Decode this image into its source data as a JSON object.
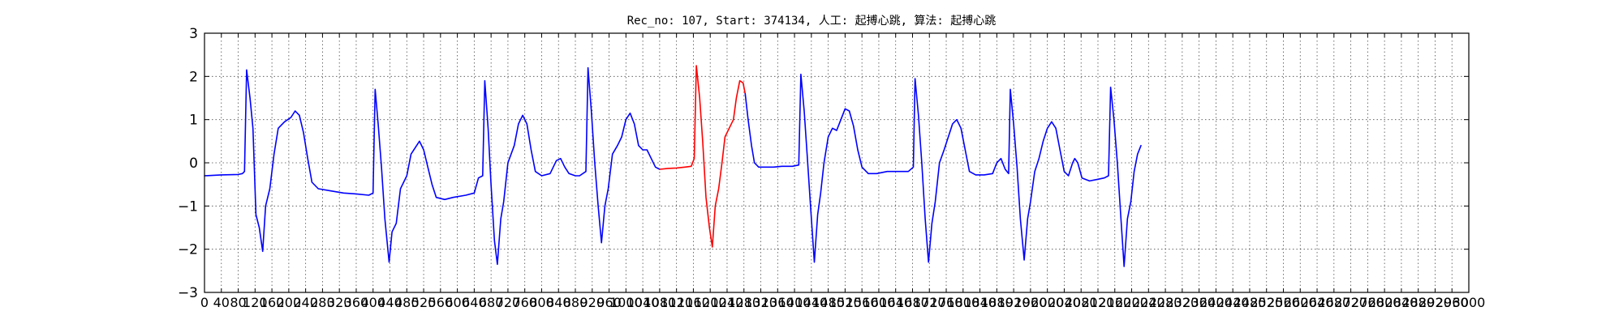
{
  "chart_data": {
    "type": "line",
    "title": "Rec_no: 107, Start: 374134, 人工: 起搏心跳, 算法: 起搏心跳",
    "xlabel": "",
    "ylabel": "",
    "xlim": [
      0,
      3000
    ],
    "ylim": [
      -3,
      3
    ],
    "grid": true,
    "y_ticks": [
      3,
      2,
      1,
      0,
      -1,
      -2,
      -3
    ],
    "y_tick_labels": [
      "3",
      "2",
      "1",
      "0",
      "−1",
      "−2",
      "−3"
    ],
    "x_ticks": [
      0,
      40,
      80,
      120,
      160,
      200,
      240,
      280,
      320,
      360,
      400,
      440,
      480,
      520,
      560,
      600,
      640,
      680,
      720,
      760,
      800,
      840,
      880,
      920,
      960,
      1000,
      1040,
      1080,
      1120,
      1160,
      1200,
      1240,
      1280,
      1320,
      1360,
      1400,
      1440,
      1480,
      1520,
      1560,
      1600,
      1640,
      1680,
      1720,
      1760,
      1800,
      1840,
      1880,
      1920,
      1960,
      2000,
      2040,
      2080,
      2120,
      2160,
      2200,
      2240,
      2280,
      2320,
      2360,
      2400,
      2440,
      2480,
      2520,
      2560,
      2600,
      2640,
      2680,
      2720,
      2760,
      2800,
      2840,
      2880,
      2920,
      2960,
      3000
    ],
    "x_tick_labels": [
      "0",
      "40",
      "80",
      "120",
      "160",
      "200",
      "240",
      "280",
      "320",
      "360",
      "400",
      "440",
      "480",
      "520",
      "560",
      "600",
      "640",
      "680",
      "720",
      "760",
      "800",
      "840",
      "880",
      "920",
      "960",
      "1000",
      "1040",
      "1080",
      "1120",
      "1160",
      "1200",
      "1240",
      "1280",
      "1320",
      "1360",
      "1400",
      "1440",
      "1480",
      "1520",
      "1560",
      "1600",
      "1640",
      "1680",
      "1720",
      "1760",
      "1800",
      "1840",
      "1880",
      "1920",
      "1960",
      "2000",
      "2040",
      "2080",
      "2120",
      "2160",
      "2200",
      "2240",
      "2280",
      "2320",
      "2360",
      "2400",
      "2440",
      "2480",
      "2520",
      "2560",
      "2600",
      "2640",
      "2680",
      "2720",
      "2760",
      "2800",
      "2840",
      "2880",
      "2920",
      "2960",
      "3000"
    ],
    "series": [
      {
        "color": "#0000ff",
        "points": [
          [
            0,
            -0.3
          ],
          [
            40,
            -0.28
          ],
          [
            80,
            -0.27
          ],
          [
            90,
            -0.25
          ],
          [
            95,
            -0.2
          ],
          [
            100,
            2.15
          ],
          [
            108,
            1.5
          ],
          [
            115,
            0.8
          ],
          [
            122,
            -1.2
          ],
          [
            130,
            -1.5
          ],
          [
            138,
            -2.05
          ],
          [
            145,
            -1.0
          ],
          [
            155,
            -0.6
          ],
          [
            165,
            0.2
          ],
          [
            175,
            0.8
          ],
          [
            190,
            0.95
          ],
          [
            205,
            1.05
          ],
          [
            215,
            1.2
          ],
          [
            225,
            1.1
          ],
          [
            235,
            0.7
          ],
          [
            245,
            0.1
          ],
          [
            255,
            -0.45
          ],
          [
            270,
            -0.6
          ],
          [
            300,
            -0.65
          ],
          [
            330,
            -0.7
          ],
          [
            360,
            -0.72
          ],
          [
            390,
            -0.75
          ],
          [
            400,
            -0.7
          ],
          [
            405,
            1.7
          ],
          [
            412,
            0.9
          ],
          [
            420,
            -0.1
          ],
          [
            428,
            -1.3
          ],
          [
            438,
            -2.3
          ],
          [
            445,
            -1.6
          ],
          [
            455,
            -1.4
          ],
          [
            465,
            -0.6
          ],
          [
            480,
            -0.3
          ],
          [
            490,
            0.2
          ],
          [
            500,
            0.35
          ],
          [
            510,
            0.5
          ],
          [
            520,
            0.3
          ],
          [
            530,
            -0.1
          ],
          [
            540,
            -0.5
          ],
          [
            550,
            -0.8
          ],
          [
            570,
            -0.85
          ],
          [
            590,
            -0.8
          ],
          [
            620,
            -0.75
          ],
          [
            640,
            -0.7
          ],
          [
            650,
            -0.35
          ],
          [
            660,
            -0.3
          ],
          [
            665,
            1.9
          ],
          [
            673,
            0.8
          ],
          [
            680,
            -0.5
          ],
          [
            688,
            -1.8
          ],
          [
            695,
            -2.35
          ],
          [
            703,
            -1.3
          ],
          [
            710,
            -0.9
          ],
          [
            720,
            0.0
          ],
          [
            735,
            0.4
          ],
          [
            745,
            0.9
          ],
          [
            755,
            1.1
          ],
          [
            765,
            0.9
          ],
          [
            775,
            0.3
          ],
          [
            785,
            -0.2
          ],
          [
            800,
            -0.3
          ],
          [
            820,
            -0.25
          ],
          [
            835,
            0.05
          ],
          [
            845,
            0.1
          ],
          [
            855,
            -0.1
          ],
          [
            865,
            -0.25
          ],
          [
            880,
            -0.3
          ],
          [
            890,
            -0.3
          ],
          [
            905,
            -0.2
          ],
          [
            910,
            2.2
          ],
          [
            918,
            1.2
          ],
          [
            926,
            0.0
          ],
          [
            934,
            -1.0
          ],
          [
            942,
            -1.85
          ],
          [
            950,
            -1.0
          ],
          [
            958,
            -0.6
          ],
          [
            968,
            0.2
          ],
          [
            980,
            0.4
          ],
          [
            990,
            0.6
          ],
          [
            1000,
            1.0
          ],
          [
            1010,
            1.15
          ],
          [
            1020,
            0.9
          ],
          [
            1030,
            0.4
          ],
          [
            1040,
            0.3
          ],
          [
            1050,
            0.3
          ],
          [
            1060,
            0.1
          ],
          [
            1070,
            -0.1
          ],
          [
            1080,
            -0.15
          ]
        ]
      },
      {
        "color": "#ff0000",
        "points": [
          [
            1080,
            -0.15
          ],
          [
            1100,
            -0.13
          ],
          [
            1120,
            -0.12
          ],
          [
            1140,
            -0.1
          ],
          [
            1155,
            -0.08
          ],
          [
            1162,
            0.1
          ],
          [
            1167,
            2.25
          ],
          [
            1175,
            1.5
          ],
          [
            1182,
            0.5
          ],
          [
            1190,
            -0.8
          ],
          [
            1198,
            -1.5
          ],
          [
            1205,
            -1.95
          ],
          [
            1212,
            -1.0
          ],
          [
            1220,
            -0.6
          ],
          [
            1228,
            0.0
          ],
          [
            1235,
            0.6
          ],
          [
            1245,
            0.8
          ],
          [
            1255,
            1.0
          ],
          [
            1262,
            1.5
          ],
          [
            1270,
            1.9
          ],
          [
            1278,
            1.85
          ],
          [
            1283,
            1.6
          ]
        ]
      },
      {
        "color": "#0000ff",
        "points": [
          [
            1283,
            1.6
          ],
          [
            1290,
            1.0
          ],
          [
            1298,
            0.4
          ],
          [
            1305,
            0.0
          ],
          [
            1315,
            -0.1
          ],
          [
            1330,
            -0.1
          ],
          [
            1350,
            -0.1
          ],
          [
            1370,
            -0.08
          ],
          [
            1395,
            -0.08
          ],
          [
            1410,
            -0.05
          ],
          [
            1415,
            2.05
          ],
          [
            1423,
            1.2
          ],
          [
            1430,
            0.2
          ],
          [
            1438,
            -1.0
          ],
          [
            1447,
            -2.3
          ],
          [
            1455,
            -1.2
          ],
          [
            1462,
            -0.7
          ],
          [
            1470,
            0.0
          ],
          [
            1480,
            0.6
          ],
          [
            1490,
            0.8
          ],
          [
            1500,
            0.75
          ],
          [
            1510,
            1.0
          ],
          [
            1520,
            1.25
          ],
          [
            1530,
            1.2
          ],
          [
            1540,
            0.85
          ],
          [
            1550,
            0.3
          ],
          [
            1560,
            -0.1
          ],
          [
            1575,
            -0.25
          ],
          [
            1595,
            -0.25
          ],
          [
            1620,
            -0.2
          ],
          [
            1650,
            -0.2
          ],
          [
            1670,
            -0.2
          ],
          [
            1682,
            -0.1
          ],
          [
            1686,
            1.95
          ],
          [
            1694,
            1.1
          ],
          [
            1702,
            0.0
          ],
          [
            1710,
            -1.3
          ],
          [
            1718,
            -2.3
          ],
          [
            1726,
            -1.4
          ],
          [
            1734,
            -0.9
          ],
          [
            1744,
            0.0
          ],
          [
            1755,
            0.3
          ],
          [
            1765,
            0.6
          ],
          [
            1775,
            0.9
          ],
          [
            1785,
            1.0
          ],
          [
            1795,
            0.8
          ],
          [
            1805,
            0.3
          ],
          [
            1815,
            -0.2
          ],
          [
            1830,
            -0.28
          ],
          [
            1850,
            -0.28
          ],
          [
            1870,
            -0.25
          ],
          [
            1880,
            0.0
          ],
          [
            1890,
            0.1
          ],
          [
            1900,
            -0.15
          ],
          [
            1908,
            -0.25
          ],
          [
            1912,
            1.7
          ],
          [
            1920,
            0.9
          ],
          [
            1928,
            -0.1
          ],
          [
            1936,
            -1.3
          ],
          [
            1945,
            -2.25
          ],
          [
            1953,
            -1.3
          ],
          [
            1960,
            -0.9
          ],
          [
            1970,
            -0.2
          ],
          [
            1980,
            0.1
          ],
          [
            1990,
            0.5
          ],
          [
            2000,
            0.8
          ],
          [
            2010,
            0.95
          ],
          [
            2020,
            0.8
          ],
          [
            2030,
            0.3
          ],
          [
            2040,
            -0.2
          ],
          [
            2050,
            -0.3
          ],
          [
            2060,
            0.0
          ],
          [
            2065,
            0.1
          ],
          [
            2072,
            0.0
          ],
          [
            2082,
            -0.35
          ],
          [
            2100,
            -0.42
          ],
          [
            2120,
            -0.38
          ],
          [
            2135,
            -0.35
          ],
          [
            2145,
            -0.3
          ],
          [
            2150,
            1.75
          ],
          [
            2158,
            1.0
          ],
          [
            2166,
            0.0
          ],
          [
            2174,
            -1.2
          ],
          [
            2182,
            -2.4
          ],
          [
            2190,
            -1.3
          ],
          [
            2198,
            -0.9
          ],
          [
            2206,
            -0.2
          ],
          [
            2214,
            0.2
          ],
          [
            2222,
            0.4
          ]
        ]
      }
    ]
  }
}
